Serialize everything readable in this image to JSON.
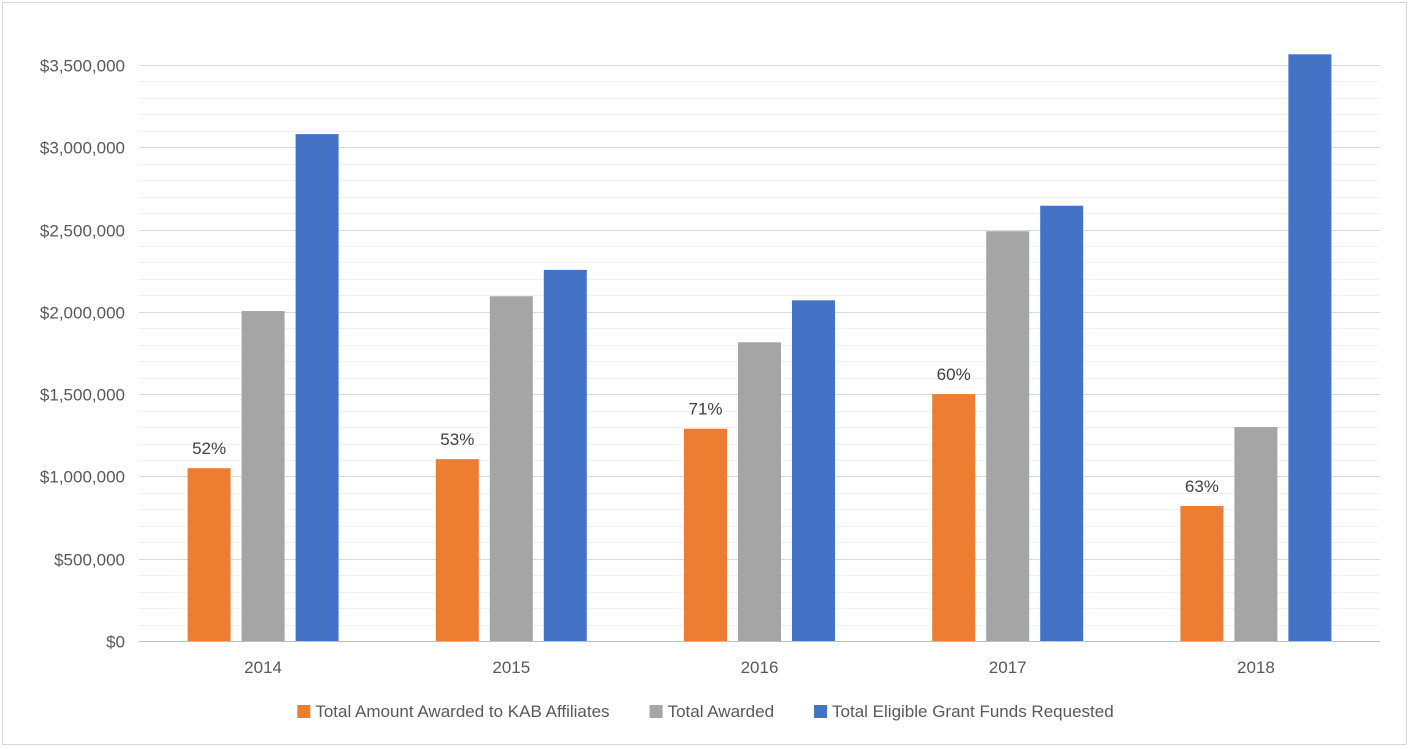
{
  "chart_data": {
    "type": "bar",
    "title": "",
    "xlabel": "",
    "ylabel": "",
    "categories": [
      "2014",
      "2015",
      "2016",
      "2017",
      "2018"
    ],
    "ylim": [
      0,
      3500000
    ],
    "y_ticks": [
      0,
      500000,
      1000000,
      1500000,
      2000000,
      2500000,
      3000000,
      3500000
    ],
    "y_tick_labels": [
      "$0",
      "$500,000",
      "$1,000,000",
      "$1,500,000",
      "$2,000,000",
      "$2,500,000",
      "$3,000,000",
      "$3,500,000"
    ],
    "grid": "horizontal major and minor gridlines",
    "legend_position": "bottom",
    "series": [
      {
        "name": "Total Amount Awarded to KAB Affiliates",
        "color": "#ED7D31",
        "values": [
          1050000,
          1105000,
          1290000,
          1500000,
          820000
        ],
        "data_labels": [
          "52%",
          "53%",
          "71%",
          "60%",
          "63%"
        ]
      },
      {
        "name": "Total Awarded",
        "color": "#A5A5A5",
        "values": [
          2005000,
          2095000,
          1815000,
          2490000,
          1300000
        ]
      },
      {
        "name": "Total Eligible Grant Funds Requested",
        "color": "#4472C4",
        "values": [
          3080000,
          2255000,
          2070000,
          2645000,
          3565000
        ]
      }
    ]
  }
}
